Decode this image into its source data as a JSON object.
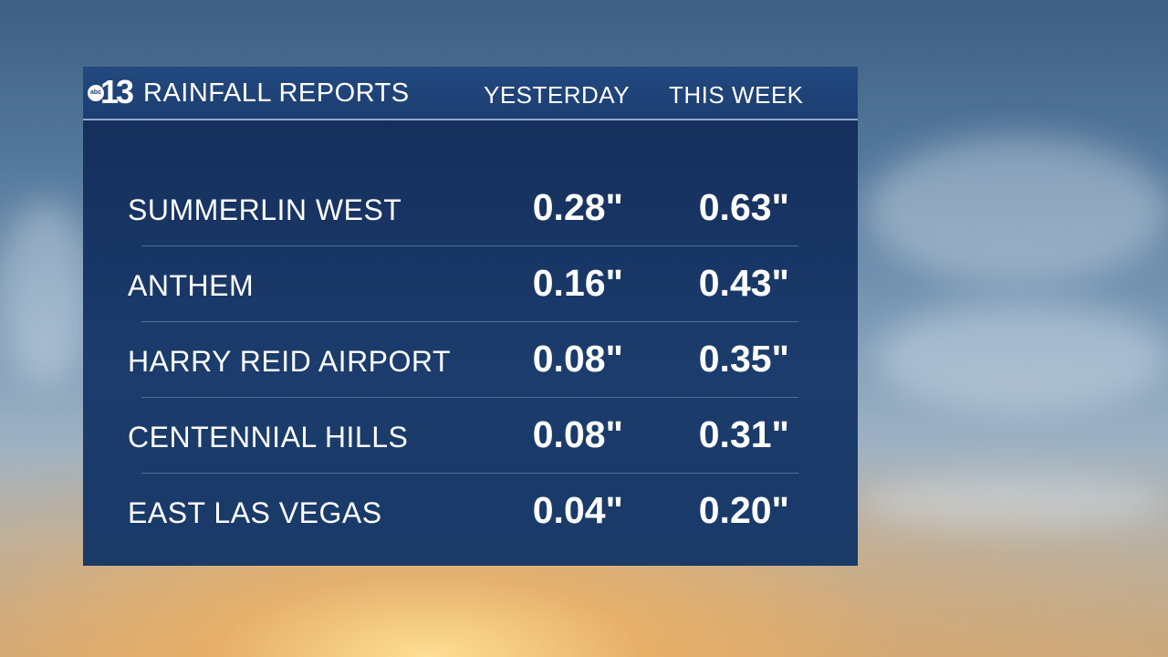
{
  "header": {
    "logo": "abc 13",
    "title": "RAINFALL REPORTS",
    "col_yesterday": "YESTERDAY",
    "col_week": "THIS WEEK"
  },
  "rows": [
    {
      "location": "SUMMERLIN WEST",
      "yesterday": "0.28\"",
      "week": "0.63\""
    },
    {
      "location": "ANTHEM",
      "yesterday": "0.16\"",
      "week": "0.43\""
    },
    {
      "location": "HARRY REID AIRPORT",
      "yesterday": "0.08\"",
      "week": "0.35\""
    },
    {
      "location": "CENTENNIAL HILLS",
      "yesterday": "0.08\"",
      "week": "0.31\""
    },
    {
      "location": "EAST LAS VEGAS",
      "yesterday": "0.04\"",
      "week": "0.20\""
    }
  ]
}
